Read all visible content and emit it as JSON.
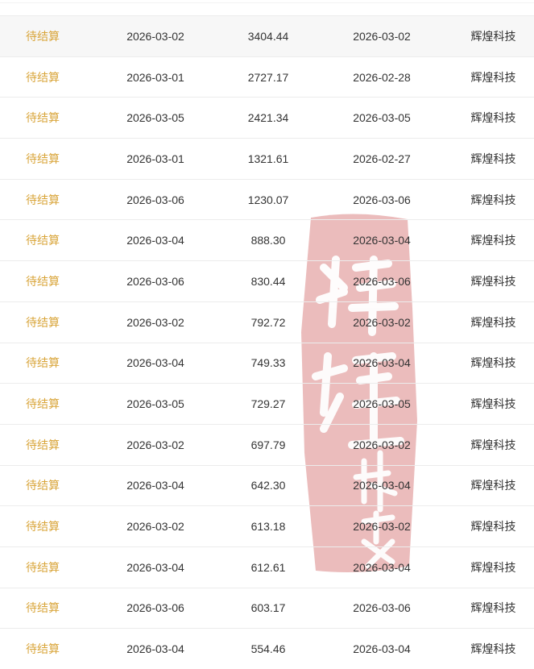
{
  "watermark": {
    "text": "辉煌科技",
    "chars": [
      "辉",
      "煌",
      "科",
      "技"
    ],
    "color": "#e6a9a9"
  },
  "colors": {
    "status": "#d9a53a",
    "text": "#333333",
    "highlight_row": "#f7f7f7"
  },
  "rows": [
    {
      "status": "待结算",
      "date": "2026-03-02",
      "amount": "3404.44",
      "date2": "2026-03-02",
      "company": "辉煌科技"
    },
    {
      "status": "待结算",
      "date": "2026-03-01",
      "amount": "2727.17",
      "date2": "2026-02-28",
      "company": "辉煌科技"
    },
    {
      "status": "待结算",
      "date": "2026-03-05",
      "amount": "2421.34",
      "date2": "2026-03-05",
      "company": "辉煌科技"
    },
    {
      "status": "待结算",
      "date": "2026-03-01",
      "amount": "1321.61",
      "date2": "2026-02-27",
      "company": "辉煌科技"
    },
    {
      "status": "待结算",
      "date": "2026-03-06",
      "amount": "1230.07",
      "date2": "2026-03-06",
      "company": "辉煌科技"
    },
    {
      "status": "待结算",
      "date": "2026-03-04",
      "amount": "888.30",
      "date2": "2026-03-04",
      "company": "辉煌科技"
    },
    {
      "status": "待结算",
      "date": "2026-03-06",
      "amount": "830.44",
      "date2": "2026-03-06",
      "company": "辉煌科技"
    },
    {
      "status": "待结算",
      "date": "2026-03-02",
      "amount": "792.72",
      "date2": "2026-03-02",
      "company": "辉煌科技"
    },
    {
      "status": "待结算",
      "date": "2026-03-04",
      "amount": "749.33",
      "date2": "2026-03-04",
      "company": "辉煌科技"
    },
    {
      "status": "待结算",
      "date": "2026-03-05",
      "amount": "729.27",
      "date2": "2026-03-05",
      "company": "辉煌科技"
    },
    {
      "status": "待结算",
      "date": "2026-03-02",
      "amount": "697.79",
      "date2": "2026-03-02",
      "company": "辉煌科技"
    },
    {
      "status": "待结算",
      "date": "2026-03-04",
      "amount": "642.30",
      "date2": "2026-03-04",
      "company": "辉煌科技"
    },
    {
      "status": "待结算",
      "date": "2026-03-02",
      "amount": "613.18",
      "date2": "2026-03-02",
      "company": "辉煌科技"
    },
    {
      "status": "待结算",
      "date": "2026-03-04",
      "amount": "612.61",
      "date2": "2026-03-04",
      "company": "辉煌科技"
    },
    {
      "status": "待结算",
      "date": "2026-03-06",
      "amount": "603.17",
      "date2": "2026-03-06",
      "company": "辉煌科技"
    },
    {
      "status": "待结算",
      "date": "2026-03-04",
      "amount": "554.46",
      "date2": "2026-03-04",
      "company": "辉煌科技"
    }
  ]
}
